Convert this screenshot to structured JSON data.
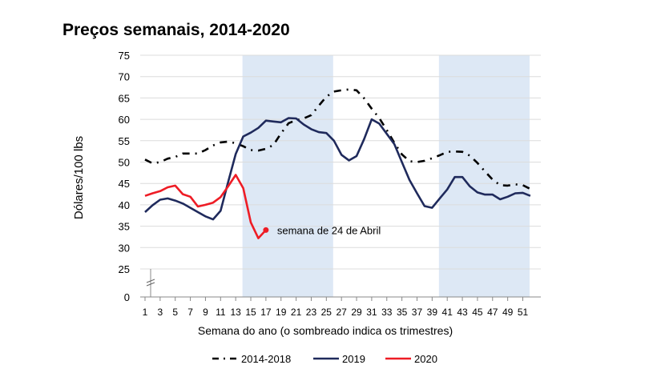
{
  "chart_data": {
    "type": "line",
    "title": "Preços semanais, 2014-2020",
    "xlabel": "Semana do ano (o sombreado indica os trimestres)",
    "ylabel": "Dólares/100 lbs",
    "ylim": [
      0,
      75
    ],
    "y_axis_break": [
      0,
      25
    ],
    "yticks": [
      0,
      25,
      30,
      35,
      40,
      45,
      50,
      55,
      60,
      65,
      70,
      75
    ],
    "xticks": [
      1,
      3,
      5,
      7,
      9,
      11,
      13,
      15,
      17,
      19,
      21,
      23,
      25,
      27,
      29,
      31,
      33,
      35,
      37,
      39,
      41,
      43,
      45,
      47,
      49,
      51
    ],
    "grid": true,
    "legend_position": "bottom",
    "shaded_weeks": [
      [
        13.9,
        25.9
      ],
      [
        39.9,
        51.9
      ]
    ],
    "shade_color": "#dde8f5",
    "series": [
      {
        "name": "2014-2018",
        "color": "#000000",
        "style": "dash-dot",
        "weeks": [
          1,
          2,
          3,
          4,
          5,
          6,
          7,
          8,
          9,
          10,
          11,
          12,
          13,
          14,
          15,
          16,
          17,
          18,
          19,
          20,
          21,
          22,
          23,
          24,
          25,
          26,
          27,
          28,
          29,
          30,
          31,
          32,
          33,
          34,
          35,
          36,
          37,
          38,
          39,
          40,
          41,
          42,
          43,
          44,
          45,
          46,
          47,
          48,
          49,
          50,
          51,
          52
        ],
        "values": [
          50.6,
          49.7,
          50,
          50.8,
          51.2,
          52,
          52,
          52,
          52.8,
          53.9,
          54.6,
          54.8,
          54.4,
          53.7,
          52.8,
          52.7,
          53.1,
          54,
          56.7,
          59.1,
          59.8,
          60.2,
          61,
          63.2,
          65.3,
          66.5,
          66.8,
          67,
          66.8,
          64.9,
          62.5,
          60.3,
          57.5,
          54.5,
          51.8,
          50.2,
          50,
          50.3,
          50.9,
          51.6,
          52.4,
          52.5,
          52.4,
          51.5,
          49.8,
          47.8,
          45.9,
          44.6,
          44.5,
          44.8,
          44.6,
          43.7
        ]
      },
      {
        "name": "2019",
        "color": "#1f2a5c",
        "style": "solid",
        "weeks": [
          1,
          2,
          3,
          4,
          5,
          6,
          7,
          8,
          9,
          10,
          11,
          12,
          13,
          14,
          15,
          16,
          17,
          18,
          19,
          20,
          21,
          22,
          23,
          24,
          25,
          26,
          27,
          28,
          29,
          30,
          31,
          32,
          33,
          34,
          35,
          36,
          37,
          38,
          39,
          40,
          41,
          42,
          43,
          44,
          45,
          46,
          47,
          48,
          49,
          50,
          51,
          52
        ],
        "values": [
          38.3,
          39.9,
          41.2,
          41.5,
          41,
          40.3,
          39.3,
          38.3,
          37.3,
          36.6,
          38.6,
          45.3,
          51.9,
          56,
          56.9,
          58,
          59.7,
          59.5,
          59.3,
          60.3,
          60.2,
          58.8,
          57.7,
          57,
          56.8,
          55,
          51.7,
          50.4,
          51.4,
          55.4,
          60,
          59,
          56.6,
          54.2,
          50,
          45.8,
          42.7,
          39.7,
          39.3,
          41.5,
          43.6,
          46.5,
          46.5,
          44.3,
          42.9,
          42.4,
          42.4,
          41.3,
          41.9,
          42.7,
          42.8,
          42.1
        ]
      },
      {
        "name": "2020",
        "color": "#ee1c25",
        "style": "solid",
        "weeks": [
          1,
          2,
          3,
          4,
          5,
          6,
          7,
          8,
          9,
          10,
          11,
          12,
          13,
          14,
          15,
          16,
          17
        ],
        "values": [
          42.1,
          42.7,
          43.2,
          44.1,
          44.5,
          42.5,
          41.9,
          39.6,
          40,
          40.5,
          41.8,
          44.3,
          47,
          43.9,
          35.9,
          32.2,
          34.1
        ]
      }
    ],
    "annotations": [
      {
        "text": "semana de 24 de Abril",
        "series": "2020",
        "week": 17,
        "value": 34.1
      }
    ]
  }
}
